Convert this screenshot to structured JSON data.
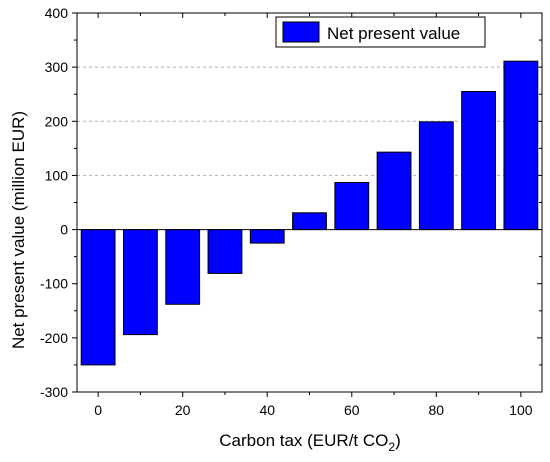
{
  "chart_data": {
    "type": "bar",
    "title": "",
    "xlabel": "Carbon tax (EUR/t CO",
    "xlabel_subscript": "2",
    "xlabel_suffix": ")",
    "ylabel": "Net present value (million EUR)",
    "x_ticks": [
      "0",
      "20",
      "40",
      "60",
      "80",
      "100"
    ],
    "y_ticks": [
      "-300",
      "-200",
      "-100",
      "0",
      "100",
      "200",
      "300",
      "400"
    ],
    "xlim": [
      -5,
      105
    ],
    "ylim": [
      -300,
      400
    ],
    "x_tick_values": [
      0,
      20,
      40,
      60,
      80,
      100
    ],
    "y_tick_values": [
      -300,
      -200,
      -100,
      0,
      100,
      200,
      300,
      400
    ],
    "gridlines_y": [
      100,
      200,
      300
    ],
    "bar_width": 8,
    "grid": "dashed horizontal at positive ticks",
    "legend_position": "top-right",
    "colors": {
      "bar": "#0000ff",
      "bar_edge": "#000000",
      "grid": "#b0b0b0",
      "axis": "#000000"
    },
    "series": [
      {
        "name": "Net present value",
        "x": [
          0,
          10,
          20,
          30,
          40,
          50,
          60,
          70,
          80,
          90,
          100
        ],
        "values": [
          -250,
          -194,
          -138,
          -81,
          -25,
          31,
          87,
          143,
          199,
          255,
          311
        ]
      }
    ]
  }
}
